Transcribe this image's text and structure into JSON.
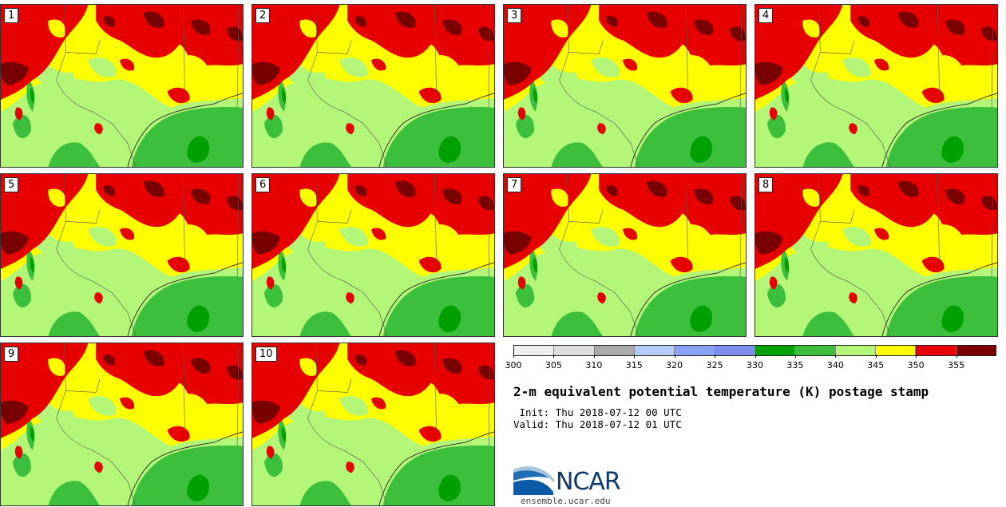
{
  "members": [
    "1",
    "2",
    "3",
    "4",
    "5",
    "6",
    "7",
    "8",
    "9",
    "10"
  ],
  "colorbar": {
    "ticks": [
      "300",
      "305",
      "310",
      "315",
      "320",
      "325",
      "330",
      "335",
      "340",
      "345",
      "350",
      "355"
    ],
    "colors": [
      "#efefef",
      "#dcdcdc",
      "#aaaaaa",
      "#b4ccfa",
      "#8aa2f5",
      "#7c8df0",
      "#00a000",
      "#3cbf3c",
      "#b4f678",
      "#ffff00",
      "#e60000",
      "#780000"
    ]
  },
  "title": "2-m equivalent potential temperature (K) postage stamp",
  "init": " Init: Thu 2018-07-12 00 UTC",
  "valid": "Valid: Thu 2018-07-12 01 UTC",
  "logo_text": "NCAR",
  "site": "ensemble.ucar.edu",
  "palette": {
    "dark_red": "#780000",
    "red": "#e60000",
    "yellow": "#ffff00",
    "light_green": "#b4f678",
    "green": "#3cbf3c",
    "dark_green": "#00a000"
  }
}
